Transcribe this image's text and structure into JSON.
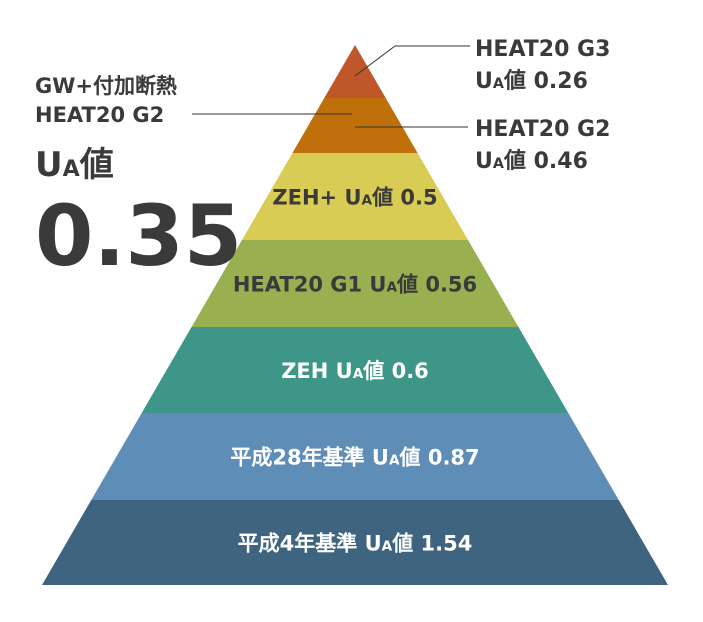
{
  "left": {
    "line1": "GW+付加断熱",
    "line2": "HEAT20 G2",
    "ua": {
      "main": "U",
      "sub": "A",
      "post": "値"
    },
    "value": "0.35"
  },
  "callouts": [
    {
      "title": "HEAT20 G3",
      "ua": {
        "main": "U",
        "sub": "A",
        "post": "値 0.26"
      }
    },
    {
      "title": "HEAT20 G2",
      "ua": {
        "main": "U",
        "sub": "A",
        "post": "値 0.46"
      }
    }
  ],
  "tiers": [
    {
      "pre": "ZEH+ ",
      "main": "U",
      "sub": "A",
      "post": "値 0.5"
    },
    {
      "pre": "HEAT20 G1 ",
      "main": "U",
      "sub": "A",
      "post": "値 0.56"
    },
    {
      "pre": "ZEH ",
      "main": "U",
      "sub": "A",
      "post": "値 0.6"
    },
    {
      "pre": "平成28年基準 ",
      "main": "U",
      "sub": "A",
      "post": "値 0.87"
    },
    {
      "pre": "平成4年基準 ",
      "main": "U",
      "sub": "A",
      "post": "値 1.54"
    }
  ]
}
